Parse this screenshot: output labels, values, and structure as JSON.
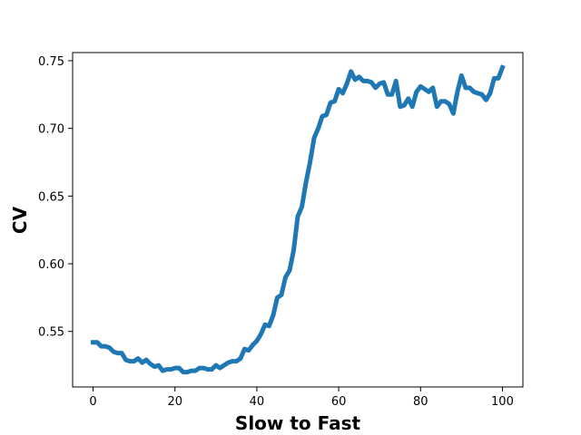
{
  "chart_data": {
    "type": "line",
    "title": "",
    "xlabel": "Slow to Fast",
    "ylabel": "CV",
    "xlim": [
      -5,
      105
    ],
    "ylim": [
      0.509,
      0.756
    ],
    "xticks": [
      0,
      20,
      40,
      60,
      80,
      100
    ],
    "yticks": [
      0.55,
      0.6,
      0.65,
      0.7,
      0.75
    ],
    "ytick_labels": [
      "0.55",
      "0.60",
      "0.65",
      "0.70",
      "0.75"
    ],
    "grid": false,
    "line_color": "#1f77b4",
    "series": [
      {
        "x": [
          0,
          1,
          2,
          3,
          4,
          5,
          6,
          7,
          8,
          9,
          10,
          11,
          12,
          13,
          14,
          15,
          16,
          17,
          18,
          19,
          20,
          21,
          22,
          23,
          24,
          25,
          26,
          27,
          28,
          29,
          30,
          31,
          32,
          33,
          34,
          35,
          36,
          37,
          38,
          39,
          40,
          41,
          42,
          43,
          44,
          45,
          46,
          47,
          48,
          49,
          50,
          51,
          52,
          53,
          54,
          55,
          56,
          57,
          58,
          59,
          60,
          61,
          62,
          63,
          64,
          65,
          66,
          67,
          68,
          69,
          70,
          71,
          72,
          73,
          74,
          75,
          76,
          77,
          78,
          79,
          80,
          81,
          82,
          83,
          84,
          85,
          86,
          87,
          88,
          89,
          90,
          91,
          92,
          93,
          94,
          95,
          96,
          97,
          98,
          99,
          100
        ],
        "y": [
          0.542,
          0.542,
          0.539,
          0.539,
          0.538,
          0.535,
          0.534,
          0.534,
          0.529,
          0.528,
          0.528,
          0.53,
          0.527,
          0.529,
          0.526,
          0.524,
          0.525,
          0.521,
          0.522,
          0.522,
          0.523,
          0.523,
          0.52,
          0.52,
          0.521,
          0.521,
          0.523,
          0.523,
          0.522,
          0.522,
          0.525,
          0.523,
          0.525,
          0.527,
          0.528,
          0.528,
          0.53,
          0.537,
          0.536,
          0.54,
          0.543,
          0.548,
          0.555,
          0.554,
          0.562,
          0.575,
          0.577,
          0.59,
          0.595,
          0.61,
          0.635,
          0.642,
          0.66,
          0.675,
          0.693,
          0.7,
          0.709,
          0.71,
          0.719,
          0.72,
          0.729,
          0.726,
          0.733,
          0.742,
          0.736,
          0.738,
          0.735,
          0.735,
          0.734,
          0.73,
          0.733,
          0.734,
          0.725,
          0.725,
          0.735,
          0.716,
          0.717,
          0.722,
          0.716,
          0.727,
          0.731,
          0.729,
          0.727,
          0.73,
          0.716,
          0.72,
          0.72,
          0.718,
          0.711,
          0.727,
          0.739,
          0.73,
          0.73,
          0.727,
          0.726,
          0.725,
          0.721,
          0.726,
          0.737,
          0.737,
          0.745
        ]
      }
    ]
  }
}
